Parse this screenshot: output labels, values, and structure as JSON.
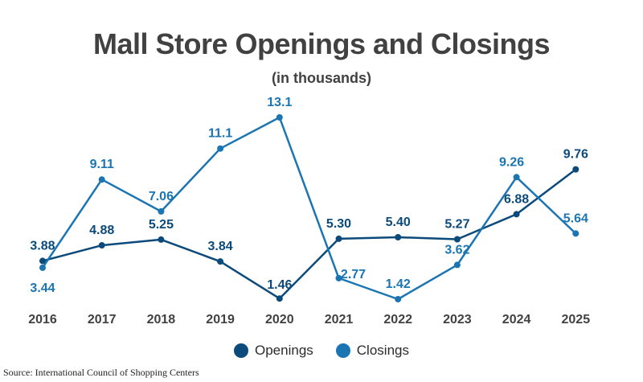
{
  "chart_data": {
    "type": "line",
    "title": "Mall Store Openings and Closings",
    "subtitle": "(in thousands)",
    "categories": [
      "2016",
      "2017",
      "2018",
      "2019",
      "2020",
      "2021",
      "2022",
      "2023",
      "2024",
      "2025"
    ],
    "series": [
      {
        "name": "Openings",
        "color": "#0b4a7a",
        "values": [
          3.88,
          4.88,
          5.25,
          3.84,
          1.46,
          5.3,
          5.4,
          5.27,
          6.88,
          9.76
        ],
        "labels": [
          "3.88",
          "4.88",
          "5.25",
          "3.84",
          "1.46",
          "5.30",
          "5.40",
          "5.27",
          "6.88",
          "9.76"
        ]
      },
      {
        "name": "Closings",
        "color": "#1b75b2",
        "values": [
          3.44,
          9.11,
          7.06,
          11.1,
          13.1,
          2.77,
          1.42,
          3.62,
          9.26,
          5.64
        ],
        "labels": [
          "3.44",
          "9.11",
          "7.06",
          "11.1",
          "13.1",
          "2.77",
          "1.42",
          "3.62",
          "9.26",
          "5.64"
        ]
      }
    ],
    "ylim": [
      0,
      14
    ],
    "grid": false,
    "legend_position": "bottom-center"
  },
  "source": "Source: International Council of Shopping Centers"
}
